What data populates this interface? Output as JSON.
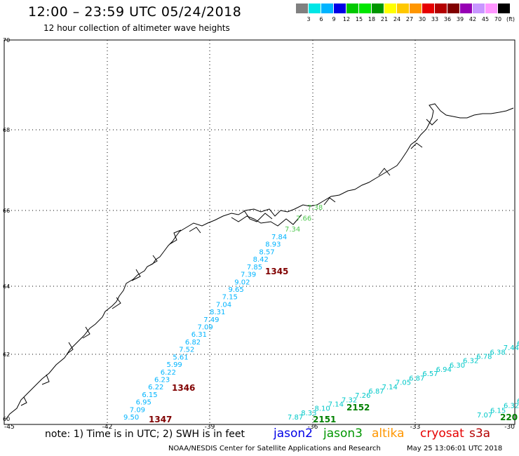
{
  "header": {
    "title": "12:00 – 23:59 UTC 05/24/2018",
    "subtitle": "12 hour collection of altimeter wave heights"
  },
  "colorbar": {
    "unit": "(ft)",
    "colors": [
      "#808080",
      "#00e6e6",
      "#00b4ff",
      "#0000e6",
      "#00c800",
      "#00e600",
      "#009600",
      "#ffff00",
      "#ffc800",
      "#ff9600",
      "#e60000",
      "#b40000",
      "#800000",
      "#9600b4",
      "#c896ff",
      "#ff96ff",
      "#000000"
    ],
    "labels": [
      "3",
      "6",
      "9",
      "12",
      "15",
      "18",
      "21",
      "24",
      "27",
      "30",
      "33",
      "36",
      "39",
      "42",
      "45",
      "70"
    ]
  },
  "axes": {
    "lat_labels": [
      "70",
      "68",
      "66",
      "64",
      "62"
    ],
    "lat_bottom": "60",
    "lon_labels": [
      "-45",
      "-42",
      "-39",
      "-36",
      "-33",
      "-30"
    ]
  },
  "tracks": [
    {
      "id": "a",
      "color": "#00b4ff",
      "values": [
        "9.50",
        "7.09",
        "6.95",
        "6.15",
        "6.22",
        "6.23",
        "6.22",
        "5.99",
        "5.61",
        "7.52",
        "6.82",
        "6.31",
        "7.09",
        "7.49",
        "8.31",
        "7.04",
        "7.15",
        "9.65",
        "9.02",
        "7.39",
        "7.85",
        "8.42",
        "8.57",
        "8.93",
        "7.84"
      ]
    },
    {
      "id": "b",
      "color": "#00c8c8",
      "values": [
        "7.87",
        "8.33",
        "8.10",
        "7.14",
        "7.32",
        "7.26",
        "6.87",
        "7.14",
        "7.05",
        "6.87",
        "6.57",
        "6.94",
        "6.30",
        "6.32",
        "6.78",
        "6.38",
        "7.44",
        "6.05"
      ]
    },
    {
      "id": "c",
      "color": "#00c8c8",
      "values": [
        "7.07",
        "6.15",
        "6.32",
        "6.34"
      ]
    },
    {
      "id": "d",
      "color": "#50c850",
      "values": [
        "7.34",
        "7.66",
        "7.38"
      ]
    }
  ],
  "pass_times": [
    {
      "label": "1345",
      "color": "#800000"
    },
    {
      "label": "1346",
      "color": "#800000"
    },
    {
      "label": "1347",
      "color": "#800000"
    },
    {
      "label": "2151",
      "color": "#008000"
    },
    {
      "label": "2152",
      "color": "#008000"
    },
    {
      "label": "220",
      "color": "#008000"
    }
  ],
  "footer": {
    "note": "note: 1) Time is in UTC; 2) SWH is in feet",
    "satellites": [
      {
        "name": "jason2",
        "color": "#0000e6"
      },
      {
        "name": "jason3",
        "color": "#009600"
      },
      {
        "name": "altika",
        "color": "#ff9600"
      },
      {
        "name": "cryosat",
        "color": "#e60000"
      },
      {
        "name": "s3a",
        "color": "#b40000"
      }
    ],
    "credit": "NOAA/NESDIS Center for Satellite Applications and Research",
    "generated": "May 25 13:06:01 UTC 2018"
  }
}
